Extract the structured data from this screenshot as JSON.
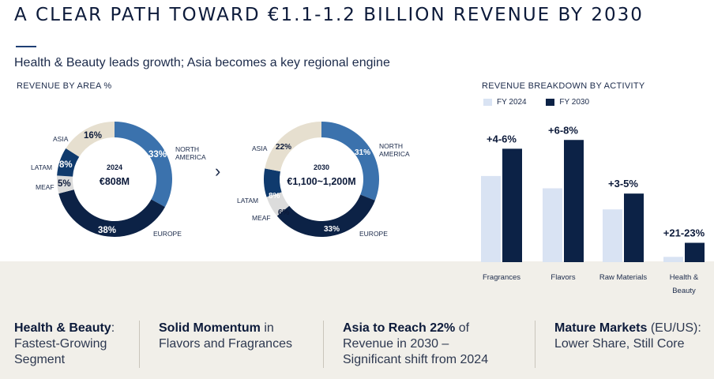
{
  "header": {
    "title": "A CLEAR PATH TOWARD €1.1-1.2 BILLION REVENUE BY 2030",
    "subtitle": "Health & Beauty leads growth; Asia becomes a key regional engine"
  },
  "colors": {
    "navy": "#0c2246",
    "mid_blue": "#0f3a6d",
    "accent_blue": "#3b72ad",
    "light_blue": "#d9e3f3",
    "beige": "#e6dfcf",
    "light_grey": "#dcdcdc",
    "band_bg": "#f1efe9"
  },
  "chart_data": [
    {
      "type": "pie",
      "variant": "donut",
      "section_label": "REVENUE BY AREA %",
      "center_year": "2024",
      "center_value": "€808M",
      "slices": [
        {
          "region": "NORTH AMERICA",
          "value": 33,
          "label": "33%",
          "color": "#3b72ad"
        },
        {
          "region": "EUROPE",
          "value": 38,
          "label": "38%",
          "color": "#0c2246"
        },
        {
          "region": "MEAF",
          "value": 5,
          "label": "5%",
          "color": "#dcdcdc"
        },
        {
          "region": "LATAM",
          "value": 8,
          "label": "8%",
          "color": "#0f3a6d"
        },
        {
          "region": "ASIA",
          "value": 16,
          "label": "16%",
          "color": "#e6dfcf"
        }
      ]
    },
    {
      "type": "pie",
      "variant": "donut",
      "center_year": "2030",
      "center_value": "€1,100~1,200M",
      "slices": [
        {
          "region": "NORTH AMERICA",
          "value": 31,
          "label": "31%",
          "color": "#3b72ad"
        },
        {
          "region": "EUROPE",
          "value": 33,
          "label": "33%",
          "color": "#0c2246"
        },
        {
          "region": "MEAF",
          "value": 6,
          "label": "6%",
          "color": "#dcdcdc"
        },
        {
          "region": "LATAM",
          "value": 8,
          "label": "8%",
          "color": "#0f3a6d"
        },
        {
          "region": "ASIA",
          "value": 22,
          "label": "22%",
          "color": "#e6dfcf"
        }
      ]
    },
    {
      "type": "bar",
      "section_label": "REVENUE BREAKDOWN BY ACTIVITY",
      "categories": [
        "Fragrances",
        "Flavors",
        "Raw Materials",
        "Health & Beauty"
      ],
      "series": [
        {
          "name": "FY 2024",
          "color": "#d9e3f3",
          "values": [
            98,
            84,
            60,
            6
          ]
        },
        {
          "name": "FY 2030",
          "color": "#0c2246",
          "values": [
            129,
            139,
            78,
            22
          ]
        }
      ],
      "annotations": [
        "+4-6%",
        "+6-8%",
        "+3-5%",
        "+21-23%"
      ],
      "ylim": [
        0,
        150
      ]
    }
  ],
  "takeaways": [
    {
      "bold": "Health & Beauty",
      "rest_line1": ":",
      "line2": "Fastest-Growing",
      "line3": "Segment"
    },
    {
      "bold": "Solid Momentum",
      "rest_line1": " in",
      "line2": "Flavors and Fragrances",
      "line3": ""
    },
    {
      "bold": "Asia to Reach 22%",
      "rest_line1": " of",
      "line2": "Revenue in 2030 –",
      "line3": "Significant shift from 2024"
    },
    {
      "bold": "Mature Markets",
      "rest_line1": " (EU/US):",
      "line2": "Lower Share, Still Core",
      "line3": ""
    }
  ]
}
